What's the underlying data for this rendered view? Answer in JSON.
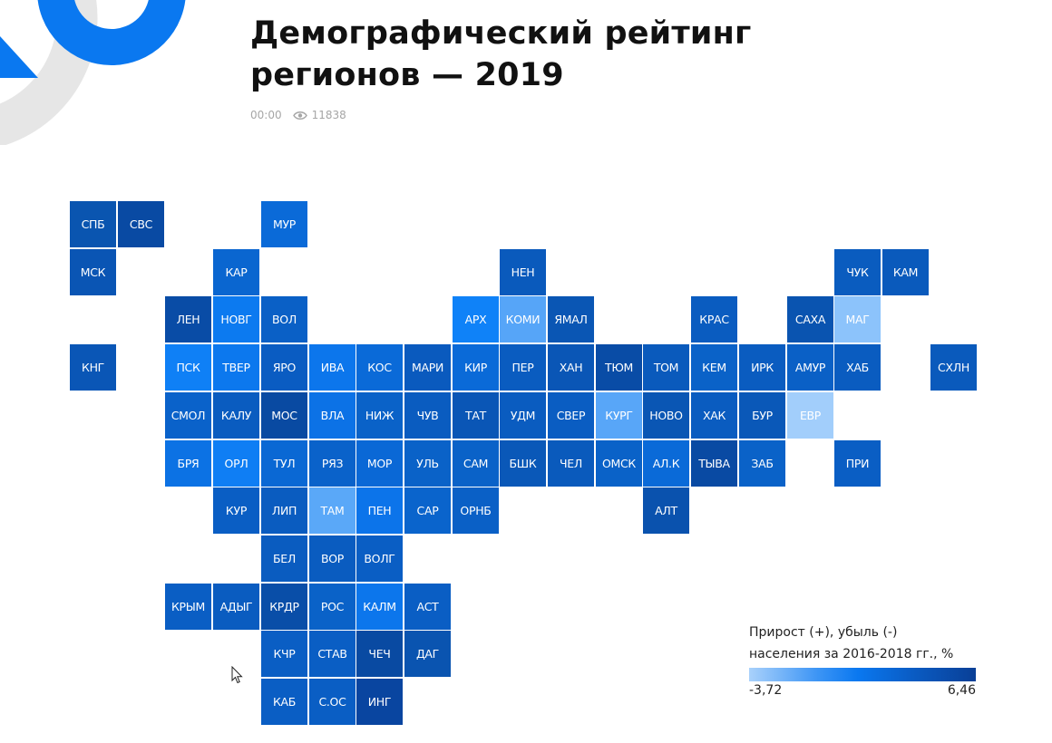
{
  "header": {
    "title_line1": "Демографический рейтинг",
    "title_line2": "регионов — 2019",
    "time": "00:00",
    "views": "11838",
    "views_icon": "eye-icon"
  },
  "colors": {
    "accent": "#0a78f0",
    "dark": "#093f96",
    "light": "#a9d1fb",
    "logo_grey": "#e6e6e6"
  },
  "legend": {
    "line1": "Прирост (+), убыль (-)",
    "line2": "населения за 2016-2018 гг., %",
    "min": "-3,72",
    "max": "6,46"
  },
  "chart_data": {
    "type": "heatmap",
    "title": "Демографический рейтинг регионов — 2019",
    "subtitle": "Прирост (+), убыль (-) населения за 2016-2018 гг., %",
    "color_scale": {
      "min": -3.72,
      "max": 6.46,
      "colors": [
        "#a9d1fb",
        "#0a78f0",
        "#093f96"
      ]
    },
    "layout": "tile-grid map of Russian regions (col,row)",
    "tiles": [
      {
        "label": "СПБ",
        "col": 0,
        "row": 0,
        "color": "#0a55b0"
      },
      {
        "label": "СВС",
        "col": 1,
        "row": 0,
        "color": "#094aa3"
      },
      {
        "label": "МУР",
        "col": 4,
        "row": 0,
        "color": "#0a6ad8"
      },
      {
        "label": "МСК",
        "col": 0,
        "row": 1,
        "color": "#0a55b4"
      },
      {
        "label": "КАР",
        "col": 3,
        "row": 1,
        "color": "#0a66d0"
      },
      {
        "label": "НЕН",
        "col": 9,
        "row": 1,
        "color": "#0a5abc"
      },
      {
        "label": "ЧУК",
        "col": 16,
        "row": 1,
        "color": "#0a5cbf"
      },
      {
        "label": "КАМ",
        "col": 17,
        "row": 1,
        "color": "#0a5abc"
      },
      {
        "label": "ЛЕН",
        "col": 2,
        "row": 2,
        "color": "#094ca6"
      },
      {
        "label": "НОВГ",
        "col": 3,
        "row": 2,
        "color": "#0c7af0"
      },
      {
        "label": "ВОЛ",
        "col": 4,
        "row": 2,
        "color": "#0a60c6"
      },
      {
        "label": "АРХ",
        "col": 8,
        "row": 2,
        "color": "#0f82f8"
      },
      {
        "label": "КОМИ",
        "col": 9,
        "row": 2,
        "color": "#56a5f8"
      },
      {
        "label": "ЯМАЛ",
        "col": 10,
        "row": 2,
        "color": "#0a56b4"
      },
      {
        "label": "КРАС",
        "col": 13,
        "row": 2,
        "color": "#0a5cc0"
      },
      {
        "label": "САХА",
        "col": 15,
        "row": 2,
        "color": "#0a54b0"
      },
      {
        "label": "МАГ",
        "col": 16,
        "row": 2,
        "color": "#8cc3fb"
      },
      {
        "label": "КНГ",
        "col": 0,
        "row": 3,
        "color": "#0a56b6"
      },
      {
        "label": "ПСК",
        "col": 2,
        "row": 3,
        "color": "#0f80f6"
      },
      {
        "label": "ТВЕР",
        "col": 3,
        "row": 3,
        "color": "#0c78ee"
      },
      {
        "label": "ЯРО",
        "col": 4,
        "row": 3,
        "color": "#0a5cc2"
      },
      {
        "label": "ИВА",
        "col": 5,
        "row": 3,
        "color": "#0c76ec"
      },
      {
        "label": "КОС",
        "col": 6,
        "row": 3,
        "color": "#0a6ad8"
      },
      {
        "label": "МАРИ",
        "col": 7,
        "row": 3,
        "color": "#0a5abe"
      },
      {
        "label": "КИР",
        "col": 8,
        "row": 3,
        "color": "#0a6ad8"
      },
      {
        "label": "ПЕР",
        "col": 9,
        "row": 3,
        "color": "#0a5cc0"
      },
      {
        "label": "ХАН",
        "col": 10,
        "row": 3,
        "color": "#0a56b6"
      },
      {
        "label": "ТЮМ",
        "col": 11,
        "row": 3,
        "color": "#094ca6"
      },
      {
        "label": "ТОМ",
        "col": 12,
        "row": 3,
        "color": "#0a5abc"
      },
      {
        "label": "КЕМ",
        "col": 13,
        "row": 3,
        "color": "#0a62c8"
      },
      {
        "label": "ИРК",
        "col": 14,
        "row": 3,
        "color": "#0a5cc0"
      },
      {
        "label": "АМУР",
        "col": 15,
        "row": 3,
        "color": "#0a60c6"
      },
      {
        "label": "ХАБ",
        "col": 16,
        "row": 3,
        "color": "#0a5cc0"
      },
      {
        "label": "СХЛН",
        "col": 18,
        "row": 3,
        "color": "#0a5abc"
      },
      {
        "label": "СМОЛ",
        "col": 2,
        "row": 4,
        "color": "#0a62ca"
      },
      {
        "label": "КАЛУ",
        "col": 3,
        "row": 4,
        "color": "#0a5cc0"
      },
      {
        "label": "МОС",
        "col": 4,
        "row": 4,
        "color": "#094aa2"
      },
      {
        "label": "ВЛА",
        "col": 5,
        "row": 4,
        "color": "#0c72e6"
      },
      {
        "label": "НИЖ",
        "col": 6,
        "row": 4,
        "color": "#0a62c8"
      },
      {
        "label": "ЧУВ",
        "col": 7,
        "row": 4,
        "color": "#0a5cc0"
      },
      {
        "label": "ТАТ",
        "col": 8,
        "row": 4,
        "color": "#0a56b6"
      },
      {
        "label": "УДМ",
        "col": 9,
        "row": 4,
        "color": "#0a5cc0"
      },
      {
        "label": "СВЕР",
        "col": 10,
        "row": 4,
        "color": "#0a5dc2"
      },
      {
        "label": "КУРГ",
        "col": 11,
        "row": 4,
        "color": "#58a6f8"
      },
      {
        "label": "НОВО",
        "col": 12,
        "row": 4,
        "color": "#0a56b4"
      },
      {
        "label": "ХАК",
        "col": 13,
        "row": 4,
        "color": "#0a5cc0"
      },
      {
        "label": "БУР",
        "col": 14,
        "row": 4,
        "color": "#0a58b8"
      },
      {
        "label": "ЕВР",
        "col": 15,
        "row": 4,
        "color": "#a2cefb"
      },
      {
        "label": "БРЯ",
        "col": 2,
        "row": 5,
        "color": "#0c72e4"
      },
      {
        "label": "ОРЛ",
        "col": 3,
        "row": 5,
        "color": "#0f7ef4"
      },
      {
        "label": "ТУЛ",
        "col": 4,
        "row": 5,
        "color": "#0a68d4"
      },
      {
        "label": "РЯЗ",
        "col": 5,
        "row": 5,
        "color": "#0a62ca"
      },
      {
        "label": "МОР",
        "col": 6,
        "row": 5,
        "color": "#0a68d6"
      },
      {
        "label": "УЛЬ",
        "col": 7,
        "row": 5,
        "color": "#0a62c8"
      },
      {
        "label": "САМ",
        "col": 8,
        "row": 5,
        "color": "#0a62c8"
      },
      {
        "label": "БШК",
        "col": 9,
        "row": 5,
        "color": "#0a58b8"
      },
      {
        "label": "ЧЕЛ",
        "col": 10,
        "row": 5,
        "color": "#0a5abc"
      },
      {
        "label": "ОМСК",
        "col": 11,
        "row": 5,
        "color": "#0a62c8"
      },
      {
        "label": "АЛ.К",
        "col": 12,
        "row": 5,
        "color": "#0a6ad8"
      },
      {
        "label": "ТЫВА",
        "col": 13,
        "row": 5,
        "color": "#094aa3"
      },
      {
        "label": "ЗАБ",
        "col": 14,
        "row": 5,
        "color": "#0a62c8"
      },
      {
        "label": "ПРИ",
        "col": 16,
        "row": 5,
        "color": "#0a5ec4"
      },
      {
        "label": "КУР",
        "col": 3,
        "row": 6,
        "color": "#0a5ec4"
      },
      {
        "label": "ЛИП",
        "col": 4,
        "row": 6,
        "color": "#0a5cc0"
      },
      {
        "label": "ТАМ",
        "col": 5,
        "row": 6,
        "color": "#5aa8f8"
      },
      {
        "label": "ПЕН",
        "col": 6,
        "row": 6,
        "color": "#0c74ea"
      },
      {
        "label": "САР",
        "col": 7,
        "row": 6,
        "color": "#0a64cc"
      },
      {
        "label": "ОРНБ",
        "col": 8,
        "row": 6,
        "color": "#0a60c6"
      },
      {
        "label": "АЛТ",
        "col": 12,
        "row": 6,
        "color": "#0a52ae"
      },
      {
        "label": "БЕЛ",
        "col": 4,
        "row": 7,
        "color": "#0a5cc0"
      },
      {
        "label": "ВОР",
        "col": 5,
        "row": 7,
        "color": "#0a5cc0"
      },
      {
        "label": "ВОЛГ",
        "col": 6,
        "row": 7,
        "color": "#0a5ec4"
      },
      {
        "label": "КРЫМ",
        "col": 2,
        "row": 8,
        "color": "#0a5ec4"
      },
      {
        "label": "АДЫГ",
        "col": 3,
        "row": 8,
        "color": "#0a5cc0"
      },
      {
        "label": "КРДР",
        "col": 4,
        "row": 8,
        "color": "#094ea8"
      },
      {
        "label": "РОС",
        "col": 5,
        "row": 8,
        "color": "#0a62c8"
      },
      {
        "label": "КАЛМ",
        "col": 6,
        "row": 8,
        "color": "#0c76ec"
      },
      {
        "label": "АСТ",
        "col": 7,
        "row": 8,
        "color": "#0a5ec4"
      },
      {
        "label": "КЧР",
        "col": 4,
        "row": 9,
        "color": "#0a5ec4"
      },
      {
        "label": "СТАВ",
        "col": 5,
        "row": 9,
        "color": "#0a5ec4"
      },
      {
        "label": "ЧЕЧ",
        "col": 6,
        "row": 9,
        "color": "#094aa2"
      },
      {
        "label": "ДАГ",
        "col": 7,
        "row": 9,
        "color": "#0a54b0"
      },
      {
        "label": "КАБ",
        "col": 4,
        "row": 10,
        "color": "#0a5ec4"
      },
      {
        "label": "С.ОС",
        "col": 5,
        "row": 10,
        "color": "#0a5ec4"
      },
      {
        "label": "ИНГ",
        "col": 6,
        "row": 10,
        "color": "#0945a0"
      }
    ]
  }
}
